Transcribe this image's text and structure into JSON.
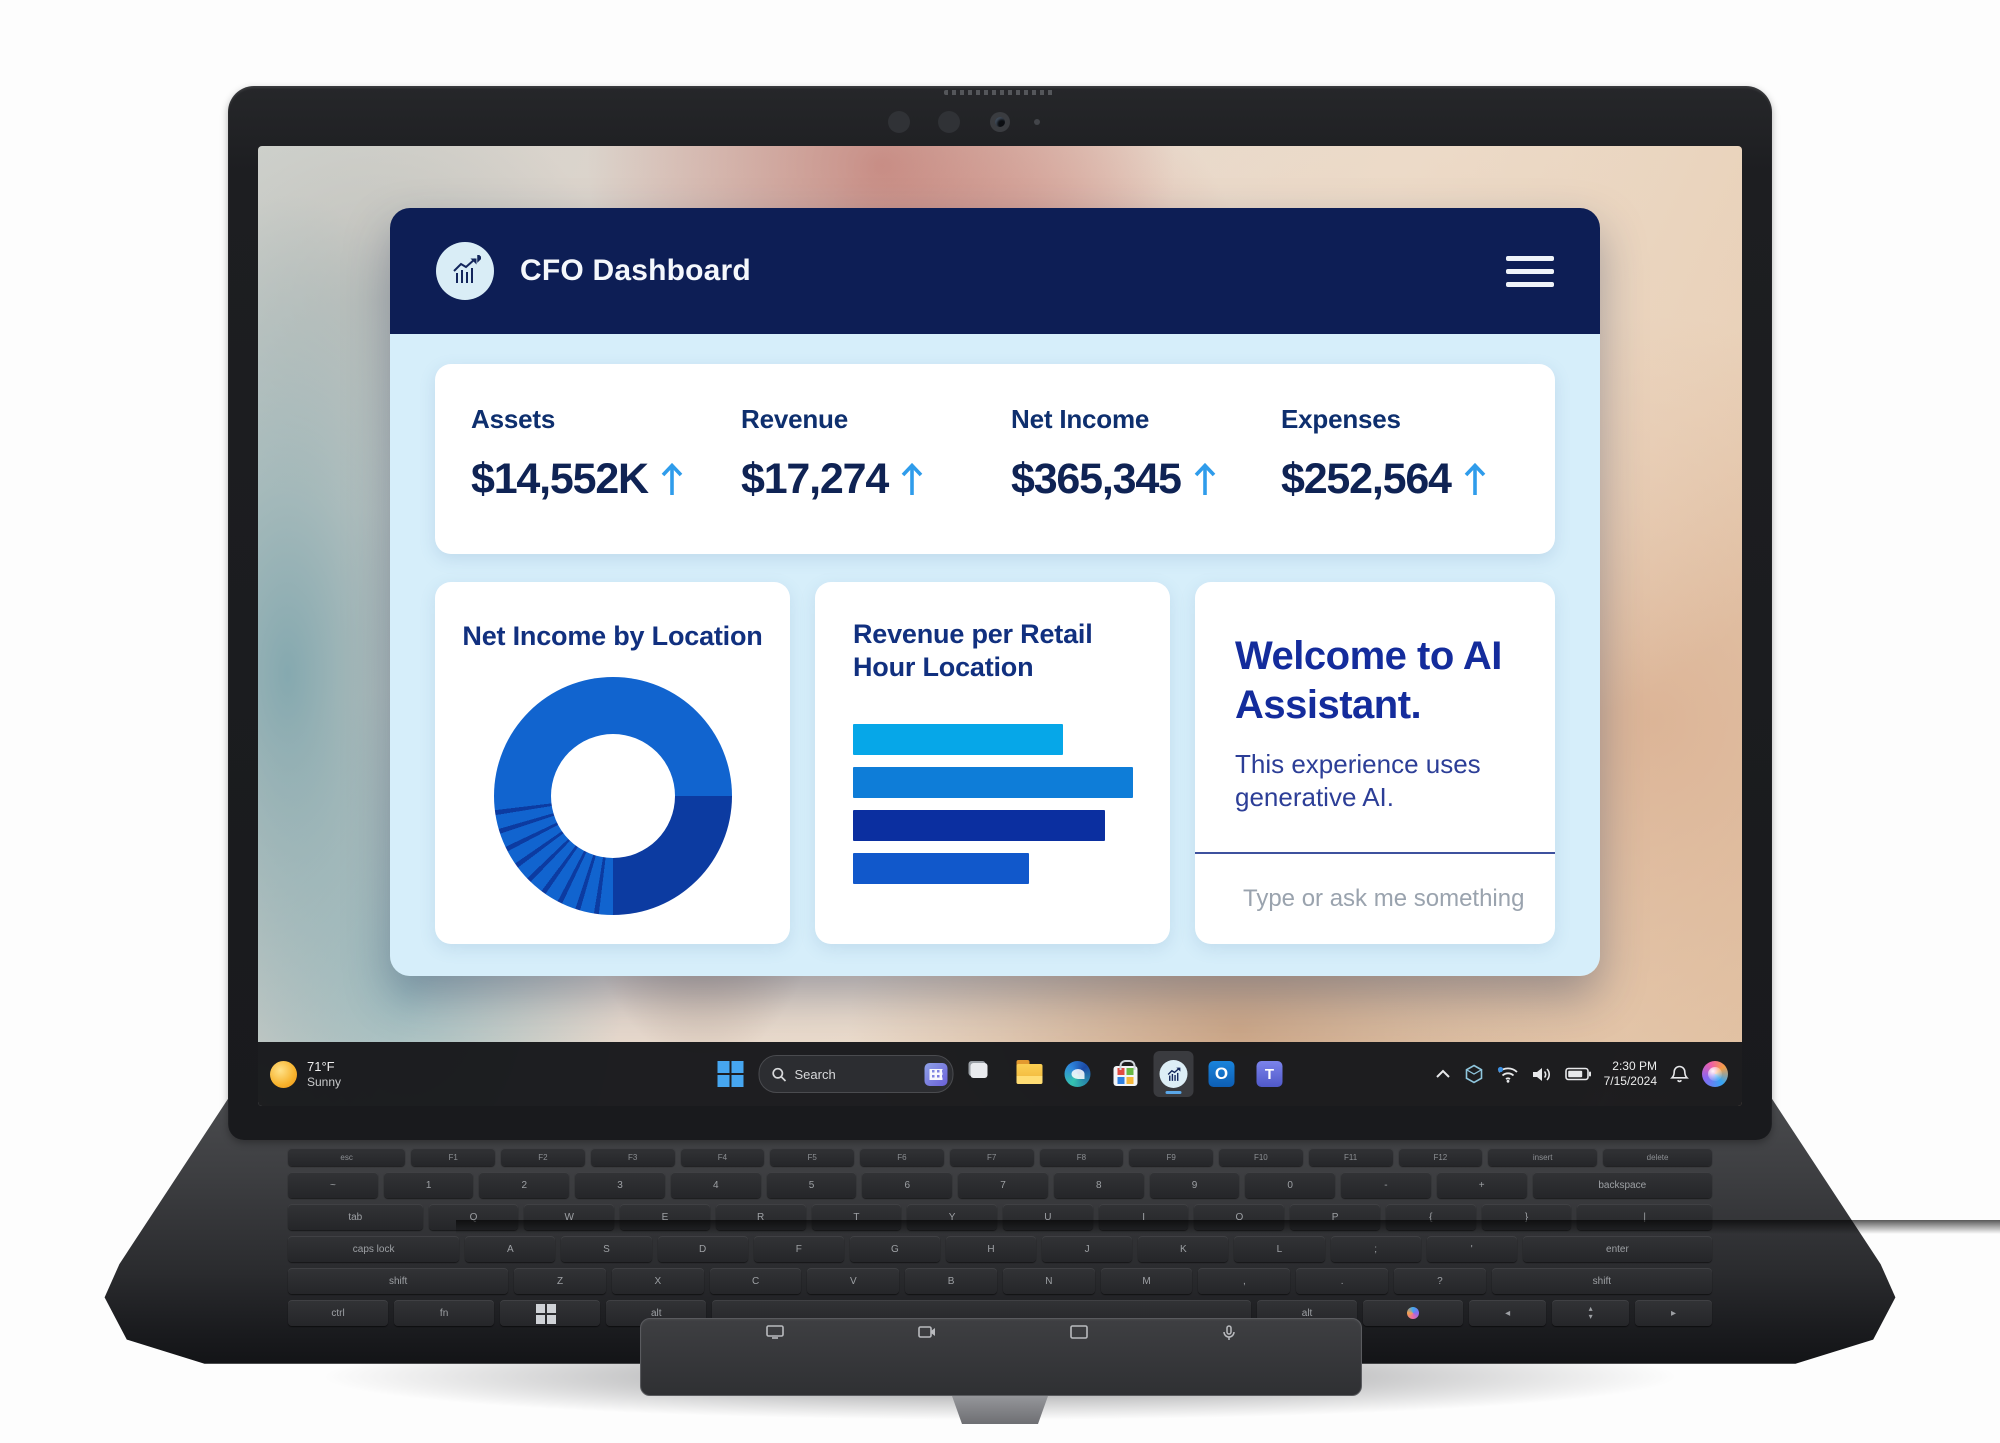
{
  "device": {
    "type": "laptop",
    "camera": "webcam",
    "weather_note": ""
  },
  "window": {
    "title": "CFO Dashboard",
    "logo_icon": "bar-chart-with-arrow-icon",
    "menu_icon": "hamburger-icon"
  },
  "metrics": [
    {
      "label": "Assets",
      "value": "$14,552K",
      "trend": "up"
    },
    {
      "label": "Revenue",
      "value": "$17,274",
      "trend": "up"
    },
    {
      "label": "Net Income",
      "value": "$365,345",
      "trend": "up"
    },
    {
      "label": "Expenses",
      "value": "$252,564",
      "trend": "up"
    }
  ],
  "assistant": {
    "title": "Welcome to AI Assistant.",
    "subtitle": "This experience uses generative AI.",
    "input_placeholder": "Type or ask me something",
    "input_icon": "sparkle-icon"
  },
  "chart_data": [
    {
      "type": "pie",
      "subtype": "donut",
      "title": "Net Income by Location",
      "legend": "none",
      "segments": [
        {
          "label": "segment-1",
          "from_deg": 0,
          "to_deg": 90,
          "style": "solid",
          "color": "#1164cf"
        },
        {
          "label": "segment-2",
          "from_deg": 90,
          "to_deg": 180,
          "style": "solid",
          "color": "#0c3ba1"
        },
        {
          "label": "segment-3",
          "from_deg": 180,
          "to_deg": 270,
          "style": "striped",
          "color": "#1164cf",
          "separator_color": "#0c3ba1",
          "slice_count": 10
        },
        {
          "label": "segment-4",
          "from_deg": 270,
          "to_deg": 360,
          "style": "solid",
          "color": "#1164cf"
        }
      ]
    },
    {
      "type": "bar",
      "orientation": "horizontal",
      "title": "Revenue per Retail Hour Location",
      "axis_labels": "none",
      "grid": false,
      "values_relative": [
        0.75,
        1.0,
        0.9,
        0.63
      ],
      "colors": [
        "#06a7e8",
        "#0e7dd8",
        "#0b2fa0",
        "#1158cb"
      ]
    }
  ],
  "taskbar": {
    "weather": {
      "temp": "71°F",
      "condition": "Sunny",
      "icon": "sun-icon"
    },
    "search_placeholder": "Search",
    "apps": [
      {
        "name": "start",
        "icon": "windows-start-icon",
        "active": false
      },
      {
        "name": "task-view",
        "icon": "task-view-icon",
        "active": false
      },
      {
        "name": "file-explorer",
        "icon": "folder-icon",
        "active": false
      },
      {
        "name": "edge",
        "icon": "edge-browser-icon",
        "active": false
      },
      {
        "name": "microsoft-store",
        "icon": "store-bag-icon",
        "active": false
      },
      {
        "name": "cfo-dashboard",
        "icon": "bar-chart-with-arrow-icon",
        "active": true
      },
      {
        "name": "outlook",
        "icon": "outlook-icon",
        "active": false
      },
      {
        "name": "teams",
        "icon": "teams-icon",
        "active": false
      }
    ],
    "outlook_letter": "O",
    "teams_letter": "T",
    "tray": {
      "time": "2:30 PM",
      "date": "7/15/2024",
      "icons": [
        "hidden-icons-chevron",
        "device-hexagon-icon",
        "wifi-icon",
        "volume-icon",
        "battery-icon",
        "notification-bell-icon",
        "copilot-icon"
      ]
    }
  },
  "keyboard": {
    "rows": [
      [
        "esc",
        "F1",
        "F2",
        "F3",
        "F4",
        "F5",
        "F6",
        "F7",
        "F8",
        "F9",
        "F10",
        "F11",
        "F12",
        "insert",
        "delete"
      ],
      [
        "~",
        "1",
        "2",
        "3",
        "4",
        "5",
        "6",
        "7",
        "8",
        "9",
        "0",
        "-",
        "+",
        "backspace"
      ],
      [
        "tab",
        "Q",
        "W",
        "E",
        "R",
        "T",
        "Y",
        "U",
        "I",
        "O",
        "P",
        "{",
        "}",
        "|"
      ],
      [
        "caps lock",
        "A",
        "S",
        "D",
        "F",
        "G",
        "H",
        "J",
        "K",
        "L",
        ";",
        "'",
        "enter"
      ],
      [
        "shift",
        "Z",
        "X",
        "C",
        "V",
        "B",
        "N",
        "M",
        ",",
        ".",
        "?",
        "shift"
      ],
      [
        "ctrl",
        "fn",
        "win",
        "alt",
        "space",
        "alt",
        "copilot",
        "left",
        "updown",
        "right"
      ]
    ],
    "trackpad_icons": [
      "display-icon",
      "camera-icon",
      "screen-share-icon",
      "mic-icon"
    ]
  },
  "colors": {
    "header_navy": "#0d1e55",
    "body_light_blue": "#d6eefa",
    "card_white": "#ffffff",
    "metric_label_navy": "#0e2f6e",
    "metric_value_navy": "#0f2354",
    "arrow_azure": "#2f9ceb",
    "card_title_navy": "#11307f",
    "welcome_navy": "#142c9c",
    "placeholder_gray": "#9aa3ae",
    "taskbar_dark": "#17181b"
  }
}
